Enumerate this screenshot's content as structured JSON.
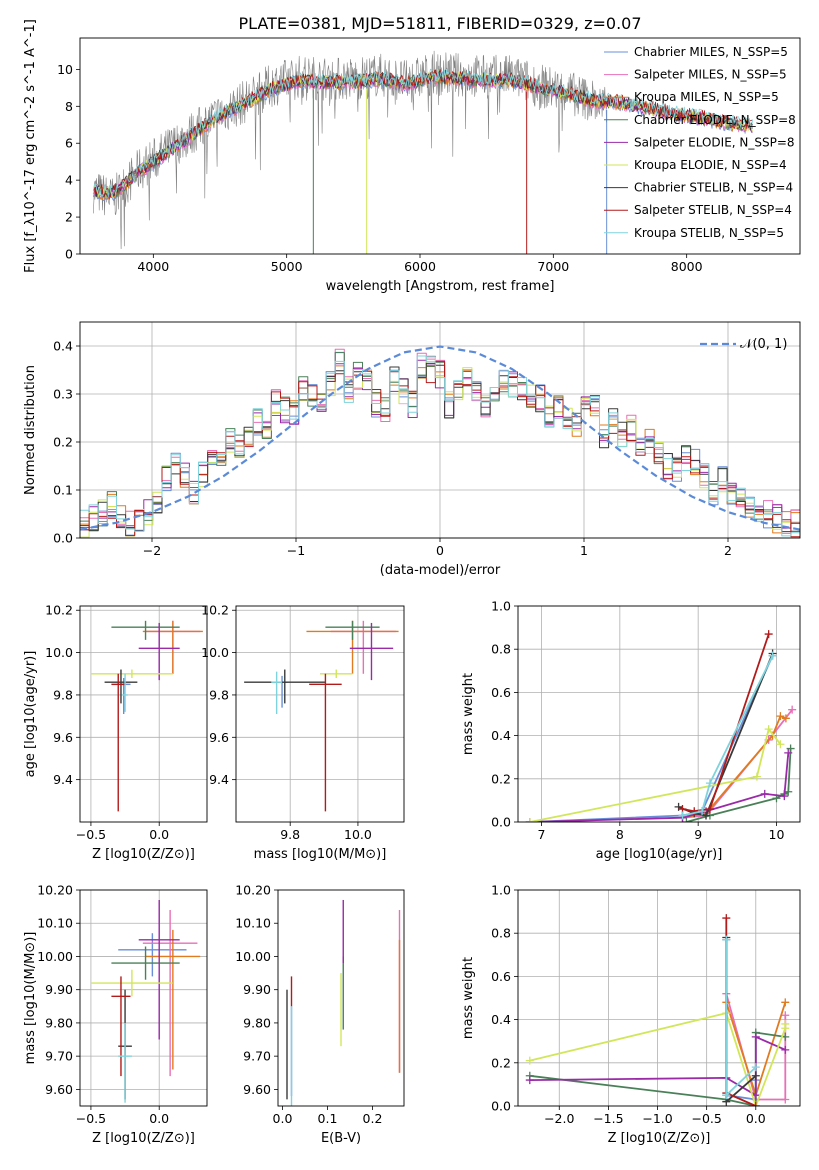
{
  "figure": {
    "title": "PLATE=0381, MJD=51811, FIBERID=0329, z=0.07"
  },
  "colors": {
    "series": [
      "#6a8fd8",
      "#e86fb8",
      "#e07b1f",
      "#4a8058",
      "#9a2aa8",
      "#d2e65a",
      "#3a3a3a",
      "#b31b1b",
      "#7fd3dc"
    ],
    "data_spectrum": "#808080",
    "normal_curve": "#5b8bd8",
    "grid": "#b0b0b0"
  },
  "chart_data": [
    {
      "id": "spectrum",
      "type": "line",
      "xlabel": "wavelength [Angstrom, rest frame]",
      "ylabel": "Flux [f_λ10^-17 erg cm^-2 s^-1 A^-1]",
      "xlim": [
        3450,
        8850
      ],
      "ylim": [
        0,
        11.7
      ],
      "xticks": [
        4000,
        5000,
        6000,
        7000,
        8000
      ],
      "yticks": [
        0,
        2,
        4,
        6,
        8,
        10
      ],
      "grid": false,
      "legend_position": "right",
      "legend": [
        "Chabrier MILES, N_SSP=5",
        "Salpeter MILES, N_SSP=5",
        "Kroupa MILES, N_SSP=5",
        "Chabrier ELODIE, N_SSP=8",
        "Salpeter ELODIE, N_SSP=8",
        "Kroupa ELODIE, N_SSP=4",
        "Chabrier STELIB, N_SSP=4",
        "Salpeter STELIB, N_SSP=4",
        "Kroupa STELIB, N_SSP=5"
      ],
      "continuum_x": [
        3550,
        3700,
        3900,
        4100,
        4300,
        4500,
        4700,
        4900,
        5100,
        5300,
        5500,
        5700,
        5900,
        6100,
        6300,
        6500,
        6700,
        6900,
        7100,
        7300,
        7400
      ],
      "continuum_y": [
        3.4,
        3.0,
        4.6,
        5.6,
        6.6,
        7.6,
        8.3,
        9.2,
        9.6,
        9.5,
        9.5,
        9.7,
        9.3,
        9.8,
        9.7,
        9.6,
        9.6,
        9.1,
        8.8,
        8.3,
        7.8
      ],
      "model_segments": [
        {
          "x": [
            3550,
            3700,
            3900,
            4100,
            4300,
            4500,
            4700,
            4900,
            5100,
            5300,
            5500,
            5700,
            5900,
            6100,
            6300,
            6500,
            6700,
            6900,
            7100,
            7300,
            7500,
            7700,
            7900,
            8100,
            8300,
            8500
          ],
          "y": [
            3.4,
            3.3,
            4.5,
            5.5,
            6.5,
            7.5,
            8.2,
            9.0,
            9.4,
            9.3,
            9.3,
            9.5,
            9.2,
            9.6,
            9.5,
            9.4,
            9.4,
            9.0,
            8.7,
            8.3,
            8.2,
            7.9,
            7.6,
            7.4,
            7.1,
            6.9
          ]
        }
      ],
      "spike_x": [
        5200,
        5600,
        6800,
        7400
      ],
      "spike_y": [
        0,
        0,
        0,
        0
      ]
    },
    {
      "id": "residuals",
      "type": "line",
      "xlabel": "(data-model)/error",
      "ylabel": "Normed distribution",
      "xlim": [
        -2.5,
        2.5
      ],
      "ylim": [
        0,
        0.45
      ],
      "xticks": [
        -2,
        -1,
        0,
        1,
        2
      ],
      "yticks": [
        0.0,
        0.1,
        0.2,
        0.3,
        0.4
      ],
      "grid": true,
      "legend": [
        "𝒩(0, 1)"
      ],
      "legend_position": "top-right",
      "bin_edges_start": -2.5,
      "bin_width": 0.1,
      "histograms": [
        [
          0.03,
          0.04,
          0.05,
          0.07,
          0.05,
          0.03,
          0.04,
          0.05,
          0.07,
          0.12,
          0.15,
          0.13,
          0.1,
          0.13,
          0.17,
          0.18,
          0.2,
          0.19,
          0.22,
          0.24,
          0.23,
          0.28,
          0.27,
          0.26,
          0.31,
          0.3,
          0.29,
          0.32,
          0.37,
          0.31,
          0.34,
          0.33,
          0.28,
          0.27,
          0.33,
          0.31,
          0.28,
          0.36,
          0.35,
          0.34,
          0.28,
          0.31,
          0.34,
          0.3,
          0.27,
          0.31,
          0.33,
          0.32,
          0.31,
          0.3,
          0.29,
          0.26,
          0.27,
          0.25,
          0.23,
          0.28,
          0.27,
          0.21,
          0.24,
          0.22,
          0.23,
          0.2,
          0.2,
          0.18,
          0.15,
          0.14,
          0.17,
          0.16,
          0.13,
          0.09,
          0.12,
          0.09,
          0.08,
          0.07,
          0.06,
          0.05,
          0.04,
          0.03,
          0.03
        ]
      ],
      "normal_x": [
        -2.5,
        -2.25,
        -2.0,
        -1.75,
        -1.5,
        -1.25,
        -1.0,
        -0.75,
        -0.5,
        -0.25,
        0.0,
        0.25,
        0.5,
        0.75,
        1.0,
        1.25,
        1.5,
        1.75,
        2.0,
        2.25,
        2.5
      ],
      "normal_y": [
        0.0175,
        0.0317,
        0.054,
        0.0863,
        0.1295,
        0.1826,
        0.242,
        0.3011,
        0.3521,
        0.3867,
        0.3989,
        0.3867,
        0.3521,
        0.3011,
        0.242,
        0.1826,
        0.1295,
        0.0863,
        0.054,
        0.0317,
        0.0175
      ]
    },
    {
      "id": "age-vs-z",
      "type": "scatter",
      "xlabel": "Z [log10(Z/Z⊙)]",
      "ylabel": "age  [log10(age/yr)]",
      "xlim": [
        -0.58,
        0.35
      ],
      "ylim": [
        9.2,
        10.22
      ],
      "xticks": [
        -0.5,
        0.0
      ],
      "yticks": [
        9.4,
        9.6,
        9.8,
        10.0,
        10.2
      ],
      "grid": true,
      "points": [
        {
          "x": -0.26,
          "y": 9.85,
          "xerr": 0.05,
          "yerr_lo": 0.14,
          "yerr_hi": 0.03,
          "c": 0
        },
        {
          "x": 0.1,
          "y": 10.1,
          "xerr": 0.2,
          "yerr_lo": 0.2,
          "yerr_hi": 0.05,
          "c": 1
        },
        {
          "x": 0.1,
          "y": 10.1,
          "xerr": 0.22,
          "yerr_lo": 0.2,
          "yerr_hi": 0.05,
          "c": 2
        },
        {
          "x": -0.1,
          "y": 10.12,
          "xerr": 0.25,
          "yerr_lo": 0.06,
          "yerr_hi": 0.03,
          "c": 3
        },
        {
          "x": 0.0,
          "y": 10.02,
          "xerr": 0.15,
          "yerr_lo": 0.15,
          "yerr_hi": 0.12,
          "c": 4
        },
        {
          "x": -0.2,
          "y": 9.9,
          "xerr": 0.3,
          "yerr_lo": 0.02,
          "yerr_hi": 0.02,
          "c": 5
        },
        {
          "x": -0.28,
          "y": 9.86,
          "xerr": 0.12,
          "yerr_lo": 0.1,
          "yerr_hi": 0.06,
          "c": 6
        },
        {
          "x": -0.3,
          "y": 9.85,
          "xerr": 0.05,
          "yerr_lo": 0.6,
          "yerr_hi": 0.05,
          "c": 7
        },
        {
          "x": -0.25,
          "y": 9.8,
          "xerr": 0.02,
          "yerr_lo": 0.08,
          "yerr_hi": 0.1,
          "c": 8
        }
      ]
    },
    {
      "id": "age-vs-mass",
      "type": "scatter",
      "xlabel": "mass [log10(M/M⊙)]",
      "ylabel": "",
      "xlim": [
        9.55,
        10.17
      ],
      "ylim": [
        9.2,
        10.22
      ],
      "xticks": [
        9.75,
        10.0
      ],
      "yticks": [
        9.4,
        9.6,
        9.8,
        10.0,
        10.2
      ],
      "grid": true,
      "points": [
        {
          "x": 9.72,
          "y": 9.86,
          "xerr": 0.02,
          "yerr_lo": 0.12,
          "yerr_hi": 0.03,
          "c": 0
        },
        {
          "x": 10.02,
          "y": 10.1,
          "xerr": 0.12,
          "yerr_lo": 0.2,
          "yerr_hi": 0.05,
          "c": 1
        },
        {
          "x": 9.98,
          "y": 10.1,
          "xerr": 0.17,
          "yerr_lo": 0.2,
          "yerr_hi": 0.05,
          "c": 2
        },
        {
          "x": 9.98,
          "y": 10.12,
          "xerr": 0.1,
          "yerr_lo": 0.06,
          "yerr_hi": 0.03,
          "c": 3
        },
        {
          "x": 10.05,
          "y": 10.02,
          "xerr": 0.08,
          "yerr_lo": 0.15,
          "yerr_hi": 0.12,
          "c": 4
        },
        {
          "x": 9.92,
          "y": 9.9,
          "xerr": 0.06,
          "yerr_lo": 0.02,
          "yerr_hi": 0.02,
          "c": 5
        },
        {
          "x": 9.73,
          "y": 9.86,
          "xerr": 0.15,
          "yerr_lo": 0.1,
          "yerr_hi": 0.06,
          "c": 6
        },
        {
          "x": 9.88,
          "y": 9.85,
          "xerr": 0.06,
          "yerr_lo": 0.6,
          "yerr_hi": 0.05,
          "c": 7
        },
        {
          "x": 9.7,
          "y": 9.86,
          "xerr": 0.02,
          "yerr_lo": 0.15,
          "yerr_hi": 0.05,
          "c": 8
        }
      ]
    },
    {
      "id": "weight-vs-age",
      "type": "line",
      "xlabel": "age  [log10(age/yr)]",
      "ylabel": "mass weight",
      "xlim": [
        6.7,
        10.3
      ],
      "ylim": [
        0,
        1.0
      ],
      "xticks": [
        7,
        8,
        9,
        10
      ],
      "yticks": [
        0.0,
        0.2,
        0.4,
        0.6,
        0.8,
        1.0
      ],
      "grid": true,
      "series": [
        {
          "x": [
            6.85,
            8.8,
            9.05,
            9.95
          ],
          "y": [
            0.0,
            0.03,
            0.05,
            0.77
          ],
          "c": 0
        },
        {
          "x": [
            8.8,
            9.1,
            9.9,
            10.2
          ],
          "y": [
            0.02,
            0.03,
            0.38,
            0.52
          ],
          "c": 1
        },
        {
          "x": [
            8.8,
            9.1,
            9.95,
            10.05,
            10.12
          ],
          "y": [
            0.02,
            0.04,
            0.4,
            0.49,
            0.48
          ],
          "c": 2
        },
        {
          "x": [
            8.85,
            9.15,
            10.0,
            10.1,
            10.15,
            10.18
          ],
          "y": [
            0.0,
            0.03,
            0.11,
            0.13,
            0.14,
            0.34
          ],
          "c": 3
        },
        {
          "x": [
            6.85,
            8.8,
            9.1,
            9.85,
            10.1,
            10.15
          ],
          "y": [
            0.0,
            0.02,
            0.05,
            0.13,
            0.12,
            0.32
          ],
          "c": 4
        },
        {
          "x": [
            6.85,
            9.75,
            9.9,
            10.05
          ],
          "y": [
            0.0,
            0.21,
            0.43,
            0.36
          ],
          "c": 5
        },
        {
          "x": [
            8.75,
            8.95,
            9.1,
            9.95
          ],
          "y": [
            0.07,
            0.04,
            0.03,
            0.78
          ],
          "c": 6
        },
        {
          "x": [
            8.8,
            8.95,
            9.15,
            9.9
          ],
          "y": [
            0.06,
            0.05,
            0.06,
            0.87
          ],
          "c": 7
        },
        {
          "x": [
            8.8,
            9.05,
            9.15,
            9.95
          ],
          "y": [
            0.03,
            0.05,
            0.18,
            0.77
          ],
          "c": 8
        }
      ]
    },
    {
      "id": "mass-vs-z",
      "type": "scatter",
      "xlabel": "Z [log10(Z/Z⊙)]",
      "ylabel": "mass [log10(M/M⊙)]",
      "xlim": [
        -0.58,
        0.35
      ],
      "ylim": [
        9.55,
        10.2
      ],
      "xticks": [
        -0.5,
        0.0
      ],
      "yticks": [
        9.6,
        9.7,
        9.8,
        9.9,
        10.0,
        10.1,
        10.2
      ],
      "grid": true,
      "points": [
        {
          "x": -0.05,
          "y": 10.02,
          "xerr": 0.25,
          "yerr_lo": 0.08,
          "yerr_hi": 0.05,
          "c": 0
        },
        {
          "x": 0.08,
          "y": 10.04,
          "xerr": 0.2,
          "yerr_lo": 0.4,
          "yerr_hi": 0.1,
          "c": 1
        },
        {
          "x": 0.1,
          "y": 10.0,
          "xerr": 0.2,
          "yerr_lo": 0.34,
          "yerr_hi": 0.08,
          "c": 2
        },
        {
          "x": -0.1,
          "y": 9.98,
          "xerr": 0.25,
          "yerr_lo": 0.05,
          "yerr_hi": 0.05,
          "c": 3
        },
        {
          "x": 0.0,
          "y": 10.05,
          "xerr": 0.15,
          "yerr_lo": 0.3,
          "yerr_hi": 0.12,
          "c": 4
        },
        {
          "x": -0.2,
          "y": 9.92,
          "xerr": 0.3,
          "yerr_lo": 0.04,
          "yerr_hi": 0.04,
          "c": 5
        },
        {
          "x": -0.25,
          "y": 9.73,
          "xerr": 0.05,
          "yerr_lo": 0.16,
          "yerr_hi": 0.17,
          "c": 6
        },
        {
          "x": -0.28,
          "y": 9.88,
          "xerr": 0.07,
          "yerr_lo": 0.24,
          "yerr_hi": 0.06,
          "c": 7
        },
        {
          "x": -0.25,
          "y": 9.7,
          "xerr": 0.05,
          "yerr_lo": 0.14,
          "yerr_hi": 0.1,
          "c": 8
        }
      ]
    },
    {
      "id": "mass-vs-ebv",
      "type": "scatter",
      "xlabel": "E(B-V)",
      "ylabel": "",
      "xlim": [
        -0.01,
        0.27
      ],
      "ylim": [
        9.55,
        10.2
      ],
      "xticks": [
        0.0,
        0.1,
        0.2
      ],
      "yticks": [
        9.6,
        9.7,
        9.8,
        9.9,
        10.0,
        10.1,
        10.2
      ],
      "grid": false,
      "points": [
        {
          "x": 0.02,
          "y": 9.73,
          "yerr_lo": 0.15,
          "yerr_hi": 0.12,
          "c": 0
        },
        {
          "x": 0.26,
          "y": 10.03,
          "yerr_lo": 0.38,
          "yerr_hi": 0.11,
          "c": 1
        },
        {
          "x": 0.26,
          "y": 9.9,
          "yerr_lo": 0.25,
          "yerr_hi": 0.15,
          "c": 2
        },
        {
          "x": 0.135,
          "y": 9.95,
          "yerr_lo": 0.17,
          "yerr_hi": 0.05,
          "c": 3
        },
        {
          "x": 0.135,
          "y": 10.05,
          "yerr_lo": 0.07,
          "yerr_hi": 0.12,
          "c": 4
        },
        {
          "x": 0.13,
          "y": 9.85,
          "yerr_lo": 0.12,
          "yerr_hi": 0.1,
          "c": 5
        },
        {
          "x": 0.01,
          "y": 9.8,
          "yerr_lo": 0.23,
          "yerr_hi": 0.1,
          "c": 6
        },
        {
          "x": 0.02,
          "y": 9.9,
          "yerr_lo": 0.05,
          "yerr_hi": 0.04,
          "c": 7
        },
        {
          "x": 0.02,
          "y": 9.7,
          "yerr_lo": 0.15,
          "yerr_hi": 0.15,
          "c": 8
        }
      ]
    },
    {
      "id": "weight-vs-z",
      "type": "line",
      "xlabel": "Z [log10(Z/Z⊙)]",
      "ylabel": "mass weight",
      "xlim": [
        -2.42,
        0.45
      ],
      "ylim": [
        0,
        1.0
      ],
      "xticks": [
        -2.0,
        -1.5,
        -1.0,
        -0.5,
        0.0
      ],
      "yticks": [
        0.0,
        0.2,
        0.4,
        0.6,
        0.8,
        1.0
      ],
      "grid": true,
      "series": [
        {
          "x": [
            -0.3,
            -0.3,
            0.0,
            0.0
          ],
          "y": [
            0.77,
            0.05,
            0.03,
            0.12
          ],
          "c": 0
        },
        {
          "x": [
            -0.3,
            0.0,
            0.3,
            0.3
          ],
          "y": [
            0.52,
            0.03,
            0.03,
            0.42
          ],
          "c": 1
        },
        {
          "x": [
            -0.3,
            0.0,
            0.3
          ],
          "y": [
            0.48,
            0.05,
            0.48
          ],
          "c": 2
        },
        {
          "x": [
            -2.3,
            -0.3,
            0.0,
            0.0,
            0.3
          ],
          "y": [
            0.14,
            0.03,
            0.0,
            0.34,
            0.32
          ],
          "c": 3
        },
        {
          "x": [
            -2.3,
            -0.3,
            0.0,
            0.0,
            0.3
          ],
          "y": [
            0.12,
            0.13,
            0.05,
            0.32,
            0.26
          ],
          "c": 4
        },
        {
          "x": [
            -2.3,
            -0.3,
            0.0,
            0.3,
            0.3
          ],
          "y": [
            0.21,
            0.43,
            0.0,
            0.36,
            0.38
          ],
          "c": 5
        },
        {
          "x": [
            -0.3,
            -0.3,
            0.0
          ],
          "y": [
            0.78,
            0.02,
            0.14
          ],
          "c": 6
        },
        {
          "x": [
            -0.3,
            -0.3,
            0.0
          ],
          "y": [
            0.87,
            0.06,
            0.0
          ],
          "c": 7
        },
        {
          "x": [
            -0.3,
            -0.3,
            0.0
          ],
          "y": [
            0.77,
            0.05,
            0.18
          ],
          "c": 8
        }
      ]
    }
  ]
}
